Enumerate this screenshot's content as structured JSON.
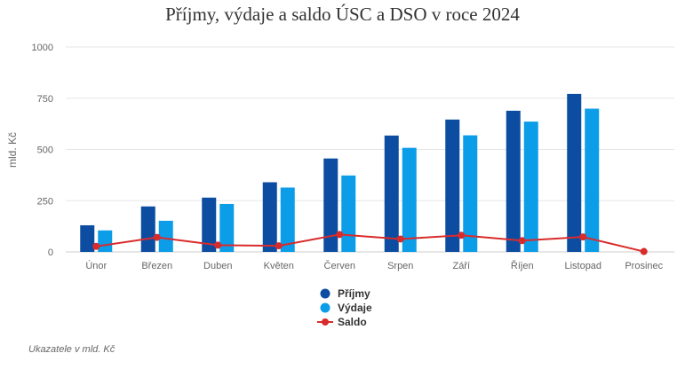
{
  "chart_data": {
    "type": "bar",
    "title": "Příjmy, výdaje a saldo ÚSC a DSO v roce 2024",
    "ylabel": "mld. Kč",
    "xlabel": "",
    "ylim": [
      0,
      1000
    ],
    "yticks": [
      0,
      250,
      500,
      750,
      1000
    ],
    "grid": true,
    "legend_position": "bottom",
    "categories": [
      "Únor",
      "Březen",
      "Duben",
      "Květen",
      "Červen",
      "Srpen",
      "Září",
      "Říjen",
      "Listopad",
      "Prosinec"
    ],
    "series": [
      {
        "name": "Příjmy",
        "type": "bar",
        "color": "#0d4da1",
        "values": [
          130,
          222,
          265,
          340,
          456,
          568,
          646,
          689,
          771,
          null
        ]
      },
      {
        "name": "Výdaje",
        "type": "bar",
        "color": "#0b9de8",
        "values": [
          105,
          152,
          234,
          314,
          373,
          508,
          569,
          636,
          699,
          null
        ]
      },
      {
        "name": "Saldo",
        "type": "line",
        "color": "#d92b2b",
        "values": [
          27,
          71,
          33,
          30,
          85,
          63,
          81,
          55,
          73,
          2
        ]
      }
    ]
  },
  "footnote": "Ukazatele v mld. Kč"
}
